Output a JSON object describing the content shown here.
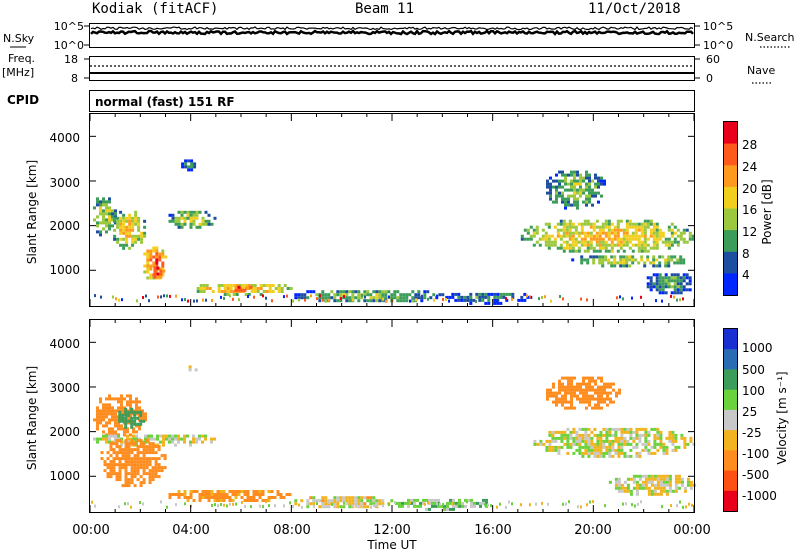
{
  "header": {
    "station": "Kodiak (fitACF)",
    "beam": "Beam 11",
    "date": "11/Oct/2018"
  },
  "strips": {
    "nsky_label": "N.Sky",
    "nsky_ticks": [
      "10^5",
      "10^0"
    ],
    "nsearch_label": "N.Search",
    "nsearch_ticks": [
      "10^5",
      "10^0"
    ],
    "freq_label": "Freq.",
    "freq_unit": "[MHz]",
    "freq_ticks": [
      "18",
      "8"
    ],
    "nave_label": "Nave",
    "nave_ticks": [
      "60",
      "0"
    ],
    "cpid_label": "CPID",
    "cpid_value": "normal (fast) 151 RF"
  },
  "chart_data": [
    {
      "type": "heatmap",
      "name": "power",
      "ylabel": "Slant Range [km]",
      "ylim": [
        200,
        4500
      ],
      "y_ticks": [
        "1000",
        "2000",
        "3000",
        "4000"
      ],
      "x_ticks": [
        "00:00",
        "04:00",
        "08:00",
        "12:00",
        "16:00",
        "20:00",
        "00:00"
      ],
      "colorbar_label": "Power [dB]",
      "colorbar_ticks": [
        "28",
        "24",
        "20",
        "16",
        "12",
        "8",
        "4"
      ],
      "colorbar_colors": [
        "#e8001a",
        "#ff5a1e",
        "#ff9a1e",
        "#f2cf1e",
        "#9bc83c",
        "#3c9c5a",
        "#1e4ea0",
        "#0026ff"
      ],
      "blobs": [
        {
          "t0": 0.0,
          "t1": 1.0,
          "r0": 1800,
          "r1": 2700,
          "dbz": 14
        },
        {
          "t0": 0.8,
          "t1": 2.2,
          "r0": 1500,
          "r1": 2400,
          "dbz": 18
        },
        {
          "t0": 2.0,
          "t1": 3.0,
          "r0": 800,
          "r1": 1600,
          "dbz": 24
        },
        {
          "t0": 2.4,
          "t1": 2.9,
          "r0": 850,
          "r1": 1150,
          "dbz": 28
        },
        {
          "t0": 3.0,
          "t1": 5.0,
          "r0": 1950,
          "r1": 2400,
          "dbz": 14
        },
        {
          "t0": 3.5,
          "t1": 4.2,
          "r0": 3250,
          "r1": 3550,
          "dbz": 6
        },
        {
          "t0": 4.0,
          "t1": 8.0,
          "r0": 480,
          "r1": 760,
          "dbz": 20
        },
        {
          "t0": 5.5,
          "t1": 6.5,
          "r0": 520,
          "r1": 720,
          "dbz": 27
        },
        {
          "t0": 8.0,
          "t1": 14.0,
          "r0": 300,
          "r1": 620,
          "dbz": 12
        },
        {
          "t0": 14.0,
          "t1": 17.5,
          "r0": 280,
          "r1": 560,
          "dbz": 8
        },
        {
          "t0": 17.0,
          "t1": 24.0,
          "r0": 1400,
          "r1": 2200,
          "dbz": 18
        },
        {
          "t0": 18.0,
          "t1": 20.5,
          "r0": 2400,
          "r1": 3300,
          "dbz": 12
        },
        {
          "t0": 19.0,
          "t1": 24.0,
          "r0": 1100,
          "r1": 1400,
          "dbz": 14
        },
        {
          "t0": 22.0,
          "t1": 24.0,
          "r0": 500,
          "r1": 1000,
          "dbz": 10
        }
      ]
    },
    {
      "type": "heatmap",
      "name": "velocity",
      "ylabel": "Slant Range [km]",
      "ylim": [
        200,
        4500
      ],
      "y_ticks": [
        "1000",
        "2000",
        "3000",
        "4000"
      ],
      "x_ticks": [
        "00:00",
        "04:00",
        "08:00",
        "12:00",
        "16:00",
        "20:00",
        "00:00"
      ],
      "xlabel": "Time UT",
      "colorbar_label": "Velocity [m s⁻¹]",
      "colorbar_ticks": [
        "1000",
        "500",
        "100",
        "25",
        "-25",
        "-100",
        "-500",
        "-1000"
      ],
      "colorbar_colors": [
        "#1a2fd2",
        "#2a6cb4",
        "#3c9c5a",
        "#6ad23c",
        "#c8c8c8",
        "#f2b41e",
        "#ff8c1e",
        "#ff5014",
        "#e8001a"
      ],
      "blobs": [
        {
          "t0": 0.0,
          "t1": 2.2,
          "r0": 1900,
          "r1": 2900,
          "vel": -300
        },
        {
          "t0": 0.0,
          "t1": 5.0,
          "r0": 1700,
          "r1": 2000,
          "vel": 0
        },
        {
          "t0": 0.3,
          "t1": 3.0,
          "r0": 800,
          "r1": 1900,
          "vel": -300
        },
        {
          "t0": 1.0,
          "t1": 2.2,
          "r0": 2100,
          "r1": 2600,
          "vel": 200
        },
        {
          "t0": 3.0,
          "t1": 8.0,
          "r0": 450,
          "r1": 760,
          "vel": -150
        },
        {
          "t0": 8.0,
          "t1": 12.0,
          "r0": 300,
          "r1": 620,
          "vel": -30
        },
        {
          "t0": 12.0,
          "t1": 16.0,
          "r0": 280,
          "r1": 560,
          "vel": 60
        },
        {
          "t0": 3.8,
          "t1": 4.3,
          "r0": 3350,
          "r1": 3550,
          "vel": 0
        },
        {
          "t0": 17.5,
          "t1": 24.0,
          "r0": 1450,
          "r1": 2150,
          "vel": 0
        },
        {
          "t0": 18.0,
          "t1": 21.0,
          "r0": 2500,
          "r1": 3300,
          "vel": -400
        },
        {
          "t0": 20.5,
          "t1": 24.0,
          "r0": 600,
          "r1": 1100,
          "vel": 0
        }
      ]
    }
  ]
}
